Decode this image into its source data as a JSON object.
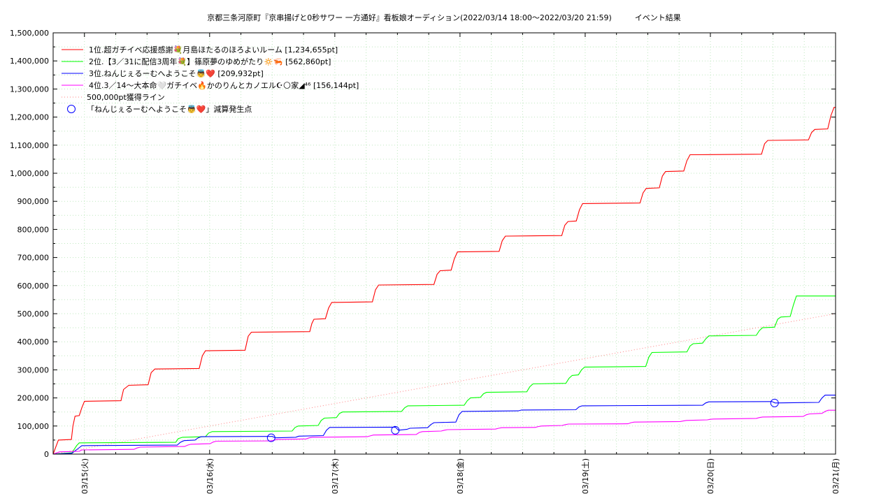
{
  "chart_data": {
    "type": "line",
    "title": "京都三条河原町『京串揚げと0秒サワー 一方通好』看板娘オーディション(2022/03/14 18:00〜2022/03/20 21:59)　　　イベント結果",
    "ylim": [
      0,
      1500000
    ],
    "yticks": [
      "0",
      "100,000",
      "200,000",
      "300,000",
      "400,000",
      "500,000",
      "600,000",
      "700,000",
      "800,000",
      "900,000",
      "1,000,000",
      "1,100,000",
      "1,200,000",
      "1,300,000",
      "1,400,000",
      "1,500,000"
    ],
    "xlim_hours": [
      0,
      150
    ],
    "x_day_labels": [
      "03/15(火)",
      "03/16(水)",
      "03/17(木)",
      "03/18(金)",
      "03/19(土)",
      "03/20(日)",
      "03/21(月)"
    ],
    "grid": true,
    "legend_position": "top-left",
    "series": [
      {
        "name": "1位.超ガチイベ応援感謝💐月島ほたるのほろよいルーム [1,234,655pt]",
        "color": "#ff0000",
        "points": [
          [
            0,
            0
          ],
          [
            1,
            50000
          ],
          [
            3.5,
            52000
          ],
          [
            3.8,
            100000
          ],
          [
            4.2,
            135000
          ],
          [
            5,
            137000
          ],
          [
            5.5,
            165000
          ],
          [
            6,
            188000
          ],
          [
            13,
            190000
          ],
          [
            13.5,
            230000
          ],
          [
            14.5,
            245000
          ],
          [
            18.2,
            247000
          ],
          [
            18.8,
            290000
          ],
          [
            19.5,
            303000
          ],
          [
            28,
            305000
          ],
          [
            28.6,
            350000
          ],
          [
            29.2,
            368000
          ],
          [
            36.8,
            370000
          ],
          [
            37.4,
            420000
          ],
          [
            38,
            434000
          ],
          [
            49.2,
            436000
          ],
          [
            49.6,
            465000
          ],
          [
            50,
            480000
          ],
          [
            52.2,
            482000
          ],
          [
            52.8,
            520000
          ],
          [
            53.4,
            540000
          ],
          [
            61.2,
            542000
          ],
          [
            61.8,
            585000
          ],
          [
            62.4,
            602000
          ],
          [
            73,
            604000
          ],
          [
            73.6,
            640000
          ],
          [
            74.2,
            653000
          ],
          [
            76.3,
            655000
          ],
          [
            76.9,
            695000
          ],
          [
            77.5,
            720000
          ],
          [
            85.5,
            722000
          ],
          [
            86.1,
            760000
          ],
          [
            86.7,
            776000
          ],
          [
            97.5,
            778000
          ],
          [
            98.1,
            815000
          ],
          [
            98.7,
            828000
          ],
          [
            100.3,
            830000
          ],
          [
            100.9,
            870000
          ],
          [
            101.5,
            892000
          ],
          [
            112.5,
            894000
          ],
          [
            113.1,
            930000
          ],
          [
            113.7,
            946000
          ],
          [
            116.2,
            948000
          ],
          [
            116.8,
            990000
          ],
          [
            117.4,
            1006000
          ],
          [
            120.9,
            1008000
          ],
          [
            121.5,
            1045000
          ],
          [
            122.1,
            1066000
          ],
          [
            135.8,
            1068000
          ],
          [
            136.4,
            1105000
          ],
          [
            137,
            1117000
          ],
          [
            144.8,
            1119000
          ],
          [
            145.4,
            1145000
          ],
          [
            146,
            1156000
          ],
          [
            148.5,
            1158000
          ],
          [
            149.1,
            1205000
          ],
          [
            149.7,
            1234655
          ],
          [
            150,
            1234655
          ]
        ]
      },
      {
        "name": "2位.【3／31に配信3周年💐】篠原夢のゆめがたり🔅🦐 [562,860pt]",
        "color": "#00ff00",
        "points": [
          [
            0,
            0
          ],
          [
            3.6,
            5000
          ],
          [
            4.5,
            30000
          ],
          [
            5,
            40000
          ],
          [
            23.5,
            42000
          ],
          [
            24,
            55000
          ],
          [
            24.8,
            60000
          ],
          [
            29.2,
            62000
          ],
          [
            29.8,
            75000
          ],
          [
            30.5,
            80000
          ],
          [
            45.8,
            82000
          ],
          [
            46.4,
            95000
          ],
          [
            47,
            100000
          ],
          [
            50.8,
            102000
          ],
          [
            51.4,
            120000
          ],
          [
            52,
            128000
          ],
          [
            54.3,
            130000
          ],
          [
            54.9,
            145000
          ],
          [
            55.5,
            150000
          ],
          [
            66.8,
            152000
          ],
          [
            67.4,
            165000
          ],
          [
            68,
            172000
          ],
          [
            78.8,
            174000
          ],
          [
            79.4,
            190000
          ],
          [
            80,
            200000
          ],
          [
            81.9,
            202000
          ],
          [
            82.5,
            215000
          ],
          [
            83.1,
            220000
          ],
          [
            90.8,
            222000
          ],
          [
            91.4,
            240000
          ],
          [
            92,
            250000
          ],
          [
            98.3,
            252000
          ],
          [
            98.9,
            270000
          ],
          [
            99.5,
            280000
          ],
          [
            100.7,
            282000
          ],
          [
            101.3,
            300000
          ],
          [
            101.9,
            310000
          ],
          [
            113.6,
            312000
          ],
          [
            114.2,
            345000
          ],
          [
            114.8,
            362000
          ],
          [
            121.5,
            364000
          ],
          [
            122.1,
            385000
          ],
          [
            122.7,
            393000
          ],
          [
            124.5,
            395000
          ],
          [
            125.1,
            410000
          ],
          [
            125.7,
            421000
          ],
          [
            134.8,
            423000
          ],
          [
            135.4,
            440000
          ],
          [
            136,
            450000
          ],
          [
            138.3,
            452000
          ],
          [
            138.9,
            480000
          ],
          [
            139.5,
            488000
          ],
          [
            141.3,
            490000
          ],
          [
            141.9,
            530000
          ],
          [
            142.5,
            562860
          ],
          [
            150,
            562860
          ]
        ]
      },
      {
        "name": "3位.ねんじぇるーむへようこそ👼❤️ [209,932pt]",
        "color": "#0000ff",
        "points": [
          [
            0,
            0
          ],
          [
            3.6,
            3000
          ],
          [
            4.8,
            20000
          ],
          [
            5.5,
            30000
          ],
          [
            23.8,
            32000
          ],
          [
            24.4,
            42000
          ],
          [
            25.1,
            48000
          ],
          [
            27.2,
            50000
          ],
          [
            27.8,
            58000
          ],
          [
            28.4,
            62000
          ],
          [
            42,
            63000
          ],
          [
            42.6,
            58000
          ],
          [
            46.5,
            60000
          ],
          [
            47.1,
            64000
          ],
          [
            51.8,
            66000
          ],
          [
            52.4,
            85000
          ],
          [
            53,
            95000
          ],
          [
            65.6,
            96000
          ],
          [
            66.2,
            85000
          ],
          [
            67.8,
            88000
          ],
          [
            68.4,
            92000
          ],
          [
            71.8,
            94000
          ],
          [
            72.4,
            105000
          ],
          [
            73,
            112000
          ],
          [
            77.2,
            114000
          ],
          [
            77.8,
            140000
          ],
          [
            78.4,
            152000
          ],
          [
            89.2,
            154000
          ],
          [
            89.8,
            157000
          ],
          [
            100.2,
            158000
          ],
          [
            100.8,
            168000
          ],
          [
            101.4,
            172000
          ],
          [
            124.5,
            174000
          ],
          [
            125.1,
            182000
          ],
          [
            125.7,
            186000
          ],
          [
            137.8,
            187000
          ],
          [
            138.4,
            182000
          ],
          [
            146.8,
            184000
          ],
          [
            147.4,
            200000
          ],
          [
            148,
            209932
          ],
          [
            150,
            209932
          ]
        ]
      },
      {
        "name": "4位.3／14〜大本命🤍ガチイベ🔥かのりんとカノエル☪🌕家◢⁴⁶ [156,144pt]",
        "color": "#ff00ff",
        "points": [
          [
            0,
            0
          ],
          [
            1.2,
            8000
          ],
          [
            5,
            10000
          ],
          [
            5.5,
            15000
          ],
          [
            15.5,
            17000
          ],
          [
            16.1,
            22000
          ],
          [
            16.7,
            25000
          ],
          [
            25.2,
            27000
          ],
          [
            25.8,
            32000
          ],
          [
            26.4,
            35000
          ],
          [
            30.1,
            37000
          ],
          [
            30.7,
            43000
          ],
          [
            31.3,
            46000
          ],
          [
            41.8,
            47000
          ],
          [
            42.4,
            50000
          ],
          [
            43,
            52000
          ],
          [
            48.5,
            54000
          ],
          [
            49.1,
            58000
          ],
          [
            49.7,
            60000
          ],
          [
            60.2,
            62000
          ],
          [
            60.8,
            65000
          ],
          [
            61.4,
            68000
          ],
          [
            69.6,
            70000
          ],
          [
            70.2,
            77000
          ],
          [
            70.8,
            80000
          ],
          [
            74.4,
            82000
          ],
          [
            75,
            85000
          ],
          [
            75.6,
            87000
          ],
          [
            84.8,
            89000
          ],
          [
            85.4,
            92000
          ],
          [
            86,
            94000
          ],
          [
            92.4,
            95000
          ],
          [
            93,
            98000
          ],
          [
            93.6,
            100000
          ],
          [
            97.6,
            102000
          ],
          [
            98.2,
            105000
          ],
          [
            98.8,
            107000
          ],
          [
            110.2,
            108000
          ],
          [
            110.8,
            112000
          ],
          [
            111.4,
            114000
          ],
          [
            120.2,
            116000
          ],
          [
            120.8,
            118000
          ],
          [
            121.4,
            120000
          ],
          [
            125.4,
            122000
          ],
          [
            126,
            124000
          ],
          [
            126.6,
            125000
          ],
          [
            134.8,
            127000
          ],
          [
            135.4,
            130000
          ],
          [
            136,
            132000
          ],
          [
            143.8,
            134000
          ],
          [
            144.4,
            140000
          ],
          [
            145,
            143000
          ],
          [
            147.4,
            145000
          ],
          [
            148,
            152000
          ],
          [
            148.6,
            156144
          ],
          [
            150,
            156144
          ]
        ]
      }
    ],
    "target_line": {
      "name": "500,000pt獲得ライン",
      "color": "#ff8080",
      "from": [
        0,
        0
      ],
      "to": [
        150,
        500000
      ]
    },
    "deduction_points": {
      "name": "「ねんじぇるーむへようこそ👼❤️」減算発生点",
      "color": "#0000ff",
      "points": [
        [
          41.8,
          58000
        ],
        [
          65.6,
          85000
        ],
        [
          138.3,
          182000
        ]
      ]
    }
  }
}
